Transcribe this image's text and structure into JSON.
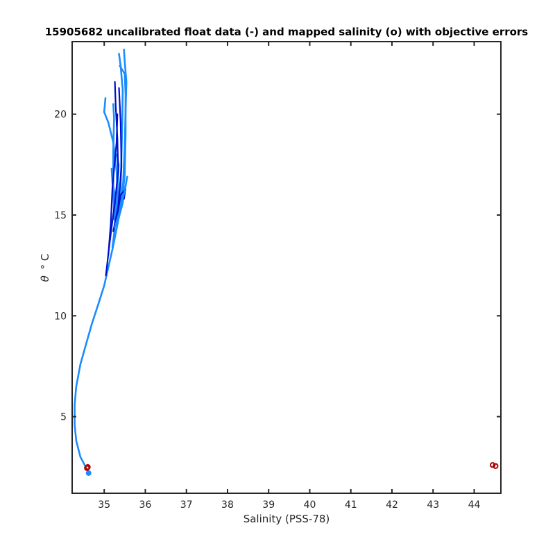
{
  "chart_data": {
    "type": "line",
    "title": "15905682 uncalibrated float data (-) and mapped salinity (o) with objective errors",
    "xlabel": "Salinity (PSS-78)",
    "ylabel_main": "θ",
    "ylabel_suffix": "° C",
    "xlim": [
      34.22,
      44.65
    ],
    "ylim": [
      1.2,
      23.6
    ],
    "xticks": [
      35,
      36,
      37,
      38,
      39,
      40,
      41,
      42,
      43,
      44
    ],
    "yticks": [
      5,
      10,
      15,
      20
    ],
    "colors": {
      "profile_light": "#1a8cff",
      "profile_dark": "#0010cc",
      "mapped_marker": "#b00000",
      "frame": "#262626"
    },
    "series": [
      {
        "style": "light",
        "points": [
          [
            34.62,
            2.2
          ],
          [
            34.55,
            2.5
          ],
          [
            34.42,
            3.0
          ],
          [
            34.32,
            3.8
          ],
          [
            34.28,
            4.6
          ],
          [
            34.28,
            5.6
          ],
          [
            34.32,
            6.5
          ],
          [
            34.42,
            7.6
          ],
          [
            34.56,
            8.6
          ],
          [
            34.7,
            9.6
          ],
          [
            34.86,
            10.6
          ],
          [
            35.0,
            11.5
          ],
          [
            35.1,
            12.4
          ],
          [
            35.2,
            13.3
          ],
          [
            35.28,
            14.1
          ],
          [
            35.36,
            14.9
          ],
          [
            35.45,
            15.6
          ],
          [
            35.5,
            16.4
          ]
        ]
      },
      {
        "style": "light",
        "points": [
          [
            35.2,
            13.4
          ],
          [
            35.25,
            14.2
          ],
          [
            35.28,
            15.2
          ],
          [
            35.26,
            16.0
          ],
          [
            35.2,
            16.6
          ],
          [
            35.18,
            17.3
          ]
        ]
      },
      {
        "style": "light",
        "points": [
          [
            35.3,
            14.6
          ],
          [
            35.34,
            15.8
          ],
          [
            35.3,
            17.2
          ],
          [
            35.22,
            18.6
          ],
          [
            35.1,
            19.6
          ],
          [
            35.0,
            20.1
          ],
          [
            35.03,
            20.8
          ]
        ]
      },
      {
        "style": "light",
        "points": [
          [
            35.34,
            15.0
          ],
          [
            35.4,
            16.4
          ],
          [
            35.42,
            18.0
          ],
          [
            35.44,
            19.6
          ],
          [
            35.45,
            21.2
          ],
          [
            35.4,
            22.4
          ],
          [
            35.36,
            23.0
          ]
        ]
      },
      {
        "style": "light",
        "points": [
          [
            35.38,
            15.2
          ],
          [
            35.46,
            16.6
          ],
          [
            35.5,
            18.4
          ],
          [
            35.52,
            20.2
          ],
          [
            35.54,
            21.6
          ],
          [
            35.5,
            22.6
          ],
          [
            35.48,
            23.2
          ]
        ]
      },
      {
        "style": "light",
        "points": [
          [
            35.42,
            15.4
          ],
          [
            35.5,
            17.0
          ],
          [
            35.52,
            19.0
          ],
          [
            35.52,
            21.0
          ],
          [
            35.5,
            22.0
          ],
          [
            35.38,
            22.4
          ]
        ]
      },
      {
        "style": "light",
        "points": [
          [
            35.24,
            14.8
          ],
          [
            35.22,
            16.6
          ],
          [
            35.22,
            18.2
          ],
          [
            35.24,
            19.8
          ],
          [
            35.22,
            20.5
          ]
        ]
      },
      {
        "style": "light",
        "points": [
          [
            35.28,
            15.0
          ],
          [
            35.32,
            16.0
          ],
          [
            35.35,
            17.5
          ],
          [
            35.3,
            18.0
          ]
        ]
      },
      {
        "style": "dark",
        "points": [
          [
            35.04,
            12.0
          ],
          [
            35.12,
            13.4
          ],
          [
            35.18,
            14.4
          ],
          [
            35.26,
            15.6
          ],
          [
            35.34,
            17.2
          ],
          [
            35.32,
            18.8
          ],
          [
            35.28,
            20.4
          ],
          [
            35.26,
            21.6
          ]
        ]
      },
      {
        "style": "dark",
        "points": [
          [
            35.22,
            14.2
          ],
          [
            35.34,
            15.4
          ],
          [
            35.42,
            17.4
          ],
          [
            35.4,
            19.6
          ],
          [
            35.36,
            21.3
          ]
        ]
      },
      {
        "style": "dark",
        "points": [
          [
            35.3,
            14.8
          ],
          [
            35.4,
            16.0
          ],
          [
            35.52,
            16.3
          ],
          [
            35.48,
            15.8
          ]
        ]
      },
      {
        "style": "dark",
        "points": [
          [
            35.1,
            13.0
          ],
          [
            35.16,
            14.6
          ],
          [
            35.2,
            16.4
          ],
          [
            35.3,
            18.6
          ],
          [
            35.32,
            20.0
          ]
        ]
      },
      {
        "style": "light",
        "points": [
          [
            35.26,
            14.4
          ],
          [
            35.38,
            15.2
          ],
          [
            35.5,
            16.2
          ],
          [
            35.56,
            16.9
          ]
        ]
      }
    ],
    "mapped_points": [
      {
        "x": 34.58,
        "y": 2.45
      },
      {
        "x": 34.6,
        "y": 2.5
      },
      {
        "x": 44.45,
        "y": 2.6
      },
      {
        "x": 44.52,
        "y": 2.55
      }
    ]
  }
}
